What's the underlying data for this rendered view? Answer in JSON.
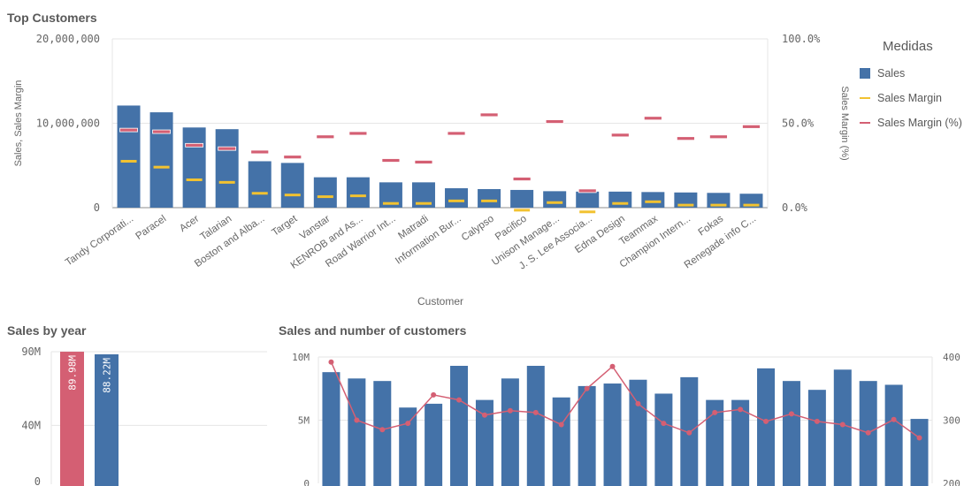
{
  "colors": {
    "sales": "#4472a8",
    "margin": "#f2c230",
    "margin_pct": "#d45f73",
    "axis": "#8c8c8c",
    "grid": "#e6e6e6"
  },
  "panels": {
    "top_customers": "Top Customers",
    "sales_by_year": "Sales by year",
    "sales_customers": "Sales and number of customers"
  },
  "legend": {
    "title": "Medidas",
    "items": [
      {
        "label": "Sales",
        "kind": "square",
        "color": "#4472a8"
      },
      {
        "label": "Sales Margin",
        "kind": "line",
        "color": "#f2c230"
      },
      {
        "label": "Sales Margin (%)",
        "kind": "line",
        "color": "#d45f73"
      }
    ]
  },
  "chart_data": [
    {
      "type": "bar",
      "title": "Top Customers",
      "xlabel": "Customer",
      "ylabel": "Sales, Sales Margin",
      "y2label": "Sales Margin (%)",
      "ylim": [
        0,
        20000000
      ],
      "y2lim": [
        0,
        100
      ],
      "yticks": [
        "20,000,000",
        "10,000,000",
        "0"
      ],
      "y2ticks": [
        "100.0%",
        "50.0%",
        "0.0%"
      ],
      "categories": [
        "Tandy Corporati...",
        "Paracel",
        "Acer",
        "Talarian",
        "Boston and Alba...",
        "Target",
        "Vanstar",
        "KENROB and As...",
        "Road Warrior Int...",
        "Matradi",
        "Information Bur...",
        "Calypso",
        "Pacifico",
        "Unison Manage...",
        "J. S. Lee Associa...",
        "Edna Design",
        "Teammax",
        "Champion Intern...",
        "Fokas",
        "Renegade info C..."
      ],
      "series": [
        {
          "name": "Sales",
          "values": [
            12100000,
            11300000,
            9500000,
            9300000,
            5500000,
            5300000,
            3600000,
            3600000,
            3000000,
            3000000,
            2300000,
            2200000,
            2100000,
            1950000,
            1900000,
            1900000,
            1850000,
            1800000,
            1750000,
            1650000
          ]
        },
        {
          "name": "Sales Margin",
          "values": [
            5500000,
            4800000,
            3300000,
            3000000,
            1700000,
            1500000,
            1300000,
            1400000,
            500000,
            500000,
            800000,
            800000,
            -300000,
            600000,
            -500000,
            500000,
            700000,
            300000,
            300000,
            300000
          ]
        },
        {
          "name": "Sales Margin (%)",
          "values": [
            46,
            45,
            37,
            35,
            33,
            30,
            42,
            44,
            28,
            27,
            44,
            55,
            17,
            51,
            10,
            43,
            53,
            41,
            42,
            48
          ]
        }
      ]
    },
    {
      "type": "bar",
      "title": "Sales by year",
      "ylim": [
        0,
        90000000
      ],
      "yticks": [
        "90M",
        "40M",
        "0"
      ],
      "series": [
        {
          "name": "",
          "values": [
            89980000,
            88220000
          ],
          "labels": [
            "89.98M",
            "88.22M"
          ],
          "colors": [
            "#d45f73",
            "#4472a8"
          ]
        }
      ]
    },
    {
      "type": "bar",
      "title": "Sales and number of customers",
      "ylim": [
        0,
        10000000
      ],
      "y2lim": [
        200,
        400
      ],
      "yticks": [
        "10M",
        "5M",
        "0"
      ],
      "y2ticks": [
        "400",
        "300",
        "200"
      ],
      "series": [
        {
          "name": "Sales",
          "values": [
            8800000,
            8300000,
            8100000,
            6000000,
            6300000,
            9300000,
            6600000,
            8300000,
            9300000,
            6800000,
            7700000,
            7900000,
            8200000,
            7100000,
            8400000,
            6600000,
            6600000,
            9100000,
            8100000,
            7400000,
            9000000,
            8100000,
            7800000,
            5100000
          ]
        },
        {
          "name": "Customers",
          "values": [
            392,
            300,
            285,
            295,
            340,
            332,
            308,
            315,
            312,
            293,
            350,
            385,
            326,
            295,
            280,
            312,
            317,
            298,
            310,
            298,
            293,
            280,
            301,
            272
          ]
        }
      ]
    }
  ]
}
